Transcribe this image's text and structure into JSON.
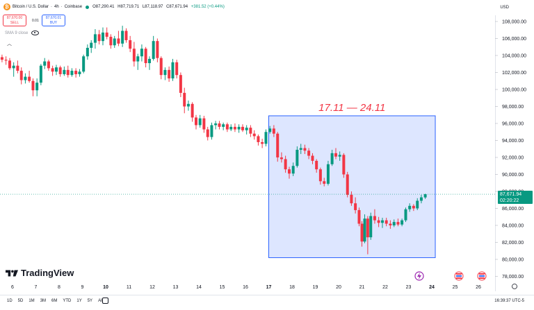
{
  "header": {
    "symbol_name": "Bitcoin / U.S. Dollar",
    "interval": "4h",
    "exchange": "Coinbase",
    "ohlc": [
      "O87,290.41",
      "H87,719.71",
      "L87,118.97",
      "C87,671.94"
    ],
    "change": "+381.52 (+0.44%)",
    "currency": "USD",
    "sell_price": "87,670.00",
    "sell_label": "SELL",
    "spread": "0.01",
    "buy_price": "87,670.01",
    "buy_label": "BUY",
    "indicator": "SMA 9 close"
  },
  "logo_text": "TradingView",
  "bottom": {
    "ranges": [
      "1D",
      "5D",
      "1M",
      "3M",
      "6M",
      "YTD",
      "1Y",
      "5Y",
      "All"
    ],
    "clock": "16:39:37 UTC-5"
  },
  "colors": {
    "up": "#089981",
    "down": "#f23645",
    "highlight": "#2962ff",
    "annotation": "#f23645"
  },
  "chart_data": {
    "type": "candlestick",
    "x_ticks": [
      "6",
      "7",
      "8",
      "9",
      "10",
      "11",
      "12",
      "13",
      "14",
      "15",
      "16",
      "17",
      "18",
      "19",
      "20",
      "21",
      "22",
      "23",
      "24",
      "25",
      "26"
    ],
    "bold_ticks": [
      "10",
      "17",
      "24"
    ],
    "y_ticks": [
      "78,000.00",
      "80,000.00",
      "82,000.00",
      "84,000.00",
      "86,000.00",
      "88,000.00",
      "90,000.00",
      "92,000.00",
      "94,000.00",
      "96,000.00",
      "98,000.00",
      "100,000.00",
      "102,000.00",
      "104,000.00",
      "106,000.00",
      "108,000.00"
    ],
    "ylim": [
      77000,
      109800
    ],
    "last_price": 87671.94,
    "last_price_label": "87,671.94",
    "countdown": "02:20:22",
    "highlight_range": {
      "x_from": 17.0,
      "x_to": 24.15,
      "y_from": 80200,
      "y_to": 96900
    },
    "annotation": "17.11 — 24.11",
    "candles": [
      {
        "x": 5.55,
        "o": 103800,
        "h": 104100,
        "l": 103200,
        "c": 103500
      },
      {
        "x": 5.72,
        "o": 103500,
        "h": 103900,
        "l": 102900,
        "c": 103400
      },
      {
        "x": 5.88,
        "o": 103400,
        "h": 103700,
        "l": 102300,
        "c": 102500
      },
      {
        "x": 6.05,
        "o": 102500,
        "h": 103200,
        "l": 101500,
        "c": 102800
      },
      {
        "x": 6.22,
        "o": 102800,
        "h": 103400,
        "l": 101900,
        "c": 102200
      },
      {
        "x": 6.38,
        "o": 102200,
        "h": 102600,
        "l": 100600,
        "c": 101100
      },
      {
        "x": 6.55,
        "o": 101100,
        "h": 101900,
        "l": 100700,
        "c": 101500
      },
      {
        "x": 6.72,
        "o": 101500,
        "h": 102200,
        "l": 100800,
        "c": 101000
      },
      {
        "x": 6.88,
        "o": 101000,
        "h": 101300,
        "l": 99200,
        "c": 99900
      },
      {
        "x": 7.05,
        "o": 99900,
        "h": 101300,
        "l": 99200,
        "c": 100800
      },
      {
        "x": 7.22,
        "o": 100800,
        "h": 103000,
        "l": 100500,
        "c": 102800
      },
      {
        "x": 7.38,
        "o": 102800,
        "h": 103700,
        "l": 102400,
        "c": 103300
      },
      {
        "x": 7.55,
        "o": 103300,
        "h": 103500,
        "l": 102200,
        "c": 102500
      },
      {
        "x": 7.72,
        "o": 102500,
        "h": 102800,
        "l": 101600,
        "c": 102100
      },
      {
        "x": 7.88,
        "o": 102100,
        "h": 102900,
        "l": 101700,
        "c": 102600
      },
      {
        "x": 8.05,
        "o": 102600,
        "h": 102800,
        "l": 101500,
        "c": 101800
      },
      {
        "x": 8.22,
        "o": 101800,
        "h": 102700,
        "l": 101600,
        "c": 102300
      },
      {
        "x": 8.38,
        "o": 102300,
        "h": 102800,
        "l": 101400,
        "c": 101700
      },
      {
        "x": 8.55,
        "o": 101700,
        "h": 102500,
        "l": 101500,
        "c": 102200
      },
      {
        "x": 8.72,
        "o": 102200,
        "h": 102500,
        "l": 101400,
        "c": 101800
      },
      {
        "x": 8.88,
        "o": 101800,
        "h": 102400,
        "l": 101500,
        "c": 102100
      },
      {
        "x": 9.05,
        "o": 102100,
        "h": 104100,
        "l": 101900,
        "c": 103900
      },
      {
        "x": 9.22,
        "o": 103900,
        "h": 105300,
        "l": 103500,
        "c": 104900
      },
      {
        "x": 9.38,
        "o": 104900,
        "h": 105800,
        "l": 104300,
        "c": 105500
      },
      {
        "x": 9.55,
        "o": 105500,
        "h": 107100,
        "l": 104800,
        "c": 106500
      },
      {
        "x": 9.72,
        "o": 106500,
        "h": 107000,
        "l": 105300,
        "c": 105700
      },
      {
        "x": 9.88,
        "o": 105700,
        "h": 107300,
        "l": 105200,
        "c": 106700
      },
      {
        "x": 10.05,
        "o": 106700,
        "h": 107300,
        "l": 105900,
        "c": 106200
      },
      {
        "x": 10.22,
        "o": 106200,
        "h": 106500,
        "l": 104800,
        "c": 105200
      },
      {
        "x": 10.38,
        "o": 105200,
        "h": 106300,
        "l": 104900,
        "c": 106000
      },
      {
        "x": 10.55,
        "o": 106000,
        "h": 106900,
        "l": 105100,
        "c": 105400
      },
      {
        "x": 10.72,
        "o": 105400,
        "h": 107500,
        "l": 105000,
        "c": 106900
      },
      {
        "x": 10.88,
        "o": 106900,
        "h": 107200,
        "l": 105500,
        "c": 105800
      },
      {
        "x": 11.05,
        "o": 105800,
        "h": 106300,
        "l": 104400,
        "c": 104800
      },
      {
        "x": 11.22,
        "o": 104800,
        "h": 105600,
        "l": 102700,
        "c": 103300
      },
      {
        "x": 11.38,
        "o": 103300,
        "h": 104200,
        "l": 102300,
        "c": 103900
      },
      {
        "x": 11.55,
        "o": 103900,
        "h": 105300,
        "l": 103300,
        "c": 104800
      },
      {
        "x": 11.72,
        "o": 104800,
        "h": 105000,
        "l": 102600,
        "c": 103100
      },
      {
        "x": 11.88,
        "o": 103100,
        "h": 103900,
        "l": 102300,
        "c": 103600
      },
      {
        "x": 12.05,
        "o": 103600,
        "h": 106300,
        "l": 103400,
        "c": 105700
      },
      {
        "x": 12.22,
        "o": 105700,
        "h": 106000,
        "l": 103200,
        "c": 103700
      },
      {
        "x": 12.38,
        "o": 103700,
        "h": 103900,
        "l": 101200,
        "c": 101700
      },
      {
        "x": 12.55,
        "o": 101700,
        "h": 102600,
        "l": 101100,
        "c": 102300
      },
      {
        "x": 12.72,
        "o": 102300,
        "h": 102700,
        "l": 100900,
        "c": 101300
      },
      {
        "x": 12.88,
        "o": 101300,
        "h": 103600,
        "l": 101000,
        "c": 103200
      },
      {
        "x": 13.05,
        "o": 103200,
        "h": 103500,
        "l": 101300,
        "c": 101700
      },
      {
        "x": 13.22,
        "o": 101700,
        "h": 102000,
        "l": 99100,
        "c": 99600
      },
      {
        "x": 13.38,
        "o": 99600,
        "h": 100200,
        "l": 97200,
        "c": 98000
      },
      {
        "x": 13.55,
        "o": 98000,
        "h": 98700,
        "l": 97500,
        "c": 98300
      },
      {
        "x": 13.72,
        "o": 98300,
        "h": 98500,
        "l": 96200,
        "c": 96700
      },
      {
        "x": 13.88,
        "o": 96700,
        "h": 97000,
        "l": 95300,
        "c": 95800
      },
      {
        "x": 14.05,
        "o": 95800,
        "h": 97000,
        "l": 95500,
        "c": 96600
      },
      {
        "x": 14.22,
        "o": 96600,
        "h": 96900,
        "l": 94900,
        "c": 95300
      },
      {
        "x": 14.38,
        "o": 95300,
        "h": 95600,
        "l": 94000,
        "c": 94400
      },
      {
        "x": 14.55,
        "o": 94400,
        "h": 96100,
        "l": 94100,
        "c": 95800
      },
      {
        "x": 14.72,
        "o": 95800,
        "h": 96300,
        "l": 95300,
        "c": 96000
      },
      {
        "x": 14.88,
        "o": 96000,
        "h": 96300,
        "l": 95300,
        "c": 95600
      },
      {
        "x": 15.05,
        "o": 95600,
        "h": 96100,
        "l": 95200,
        "c": 95900
      },
      {
        "x": 15.22,
        "o": 95900,
        "h": 96100,
        "l": 95000,
        "c": 95300
      },
      {
        "x": 15.38,
        "o": 95300,
        "h": 95900,
        "l": 95100,
        "c": 95600
      },
      {
        "x": 15.55,
        "o": 95600,
        "h": 96000,
        "l": 95000,
        "c": 95300
      },
      {
        "x": 15.72,
        "o": 95300,
        "h": 95900,
        "l": 94900,
        "c": 95600
      },
      {
        "x": 15.88,
        "o": 95600,
        "h": 95900,
        "l": 95000,
        "c": 95200
      },
      {
        "x": 16.05,
        "o": 95200,
        "h": 95800,
        "l": 94700,
        "c": 95500
      },
      {
        "x": 16.22,
        "o": 95500,
        "h": 95800,
        "l": 94400,
        "c": 94800
      },
      {
        "x": 16.38,
        "o": 94800,
        "h": 95200,
        "l": 94100,
        "c": 94500
      },
      {
        "x": 16.55,
        "o": 94500,
        "h": 94700,
        "l": 93400,
        "c": 93800
      },
      {
        "x": 16.72,
        "o": 93800,
        "h": 94200,
        "l": 93100,
        "c": 93600
      },
      {
        "x": 16.88,
        "o": 93600,
        "h": 95300,
        "l": 93300,
        "c": 95000
      },
      {
        "x": 17.05,
        "o": 95000,
        "h": 95700,
        "l": 94800,
        "c": 95400
      },
      {
        "x": 17.22,
        "o": 95400,
        "h": 95800,
        "l": 94400,
        "c": 94800
      },
      {
        "x": 17.38,
        "o": 94800,
        "h": 95000,
        "l": 91500,
        "c": 92000
      },
      {
        "x": 17.55,
        "o": 92000,
        "h": 92600,
        "l": 91400,
        "c": 91800
      },
      {
        "x": 17.72,
        "o": 91800,
        "h": 92200,
        "l": 90200,
        "c": 90600
      },
      {
        "x": 17.88,
        "o": 90600,
        "h": 90900,
        "l": 89500,
        "c": 90100
      },
      {
        "x": 18.05,
        "o": 90100,
        "h": 91400,
        "l": 89800,
        "c": 91000
      },
      {
        "x": 18.22,
        "o": 91000,
        "h": 93300,
        "l": 90800,
        "c": 92900
      },
      {
        "x": 18.38,
        "o": 92900,
        "h": 93600,
        "l": 92400,
        "c": 93100
      },
      {
        "x": 18.55,
        "o": 93100,
        "h": 93500,
        "l": 92400,
        "c": 92800
      },
      {
        "x": 18.72,
        "o": 92800,
        "h": 93100,
        "l": 91800,
        "c": 92200
      },
      {
        "x": 18.88,
        "o": 92200,
        "h": 92500,
        "l": 91200,
        "c": 91600
      },
      {
        "x": 19.05,
        "o": 91600,
        "h": 91800,
        "l": 90200,
        "c": 90600
      },
      {
        "x": 19.22,
        "o": 90600,
        "h": 90800,
        "l": 88800,
        "c": 89200
      },
      {
        "x": 19.38,
        "o": 89200,
        "h": 89600,
        "l": 88600,
        "c": 88900
      },
      {
        "x": 19.55,
        "o": 88900,
        "h": 91600,
        "l": 88700,
        "c": 91200
      },
      {
        "x": 19.72,
        "o": 91200,
        "h": 92900,
        "l": 91000,
        "c": 92500
      },
      {
        "x": 19.88,
        "o": 92500,
        "h": 93100,
        "l": 91800,
        "c": 92100
      },
      {
        "x": 20.05,
        "o": 92100,
        "h": 92700,
        "l": 91600,
        "c": 92300
      },
      {
        "x": 20.22,
        "o": 92300,
        "h": 92500,
        "l": 89600,
        "c": 90000
      },
      {
        "x": 20.38,
        "o": 90000,
        "h": 90300,
        "l": 87300,
        "c": 87600
      },
      {
        "x": 20.55,
        "o": 87600,
        "h": 88000,
        "l": 86300,
        "c": 86600
      },
      {
        "x": 20.72,
        "o": 86600,
        "h": 87300,
        "l": 85400,
        "c": 85800
      },
      {
        "x": 20.88,
        "o": 85800,
        "h": 86100,
        "l": 83900,
        "c": 84200
      },
      {
        "x": 21.0,
        "o": 84200,
        "h": 84500,
        "l": 81500,
        "c": 82100
      },
      {
        "x": 21.12,
        "o": 82100,
        "h": 85300,
        "l": 81900,
        "c": 84800
      },
      {
        "x": 21.25,
        "o": 84800,
        "h": 85100,
        "l": 80600,
        "c": 82600
      },
      {
        "x": 21.38,
        "o": 82600,
        "h": 85500,
        "l": 82300,
        "c": 85100
      },
      {
        "x": 21.55,
        "o": 85100,
        "h": 85900,
        "l": 84200,
        "c": 84600
      },
      {
        "x": 21.72,
        "o": 84600,
        "h": 85000,
        "l": 83800,
        "c": 84300
      },
      {
        "x": 21.88,
        "o": 84300,
        "h": 84900,
        "l": 83700,
        "c": 84600
      },
      {
        "x": 22.05,
        "o": 84600,
        "h": 84900,
        "l": 83900,
        "c": 84200
      },
      {
        "x": 22.22,
        "o": 84200,
        "h": 84600,
        "l": 83600,
        "c": 84000
      },
      {
        "x": 22.38,
        "o": 84000,
        "h": 84700,
        "l": 83800,
        "c": 84400
      },
      {
        "x": 22.55,
        "o": 84400,
        "h": 84800,
        "l": 83900,
        "c": 84100
      },
      {
        "x": 22.72,
        "o": 84100,
        "h": 84800,
        "l": 83900,
        "c": 84600
      },
      {
        "x": 22.88,
        "o": 84600,
        "h": 86100,
        "l": 84400,
        "c": 85900
      },
      {
        "x": 23.05,
        "o": 85900,
        "h": 86600,
        "l": 85600,
        "c": 86300
      },
      {
        "x": 23.22,
        "o": 86300,
        "h": 86500,
        "l": 85700,
        "c": 86000
      },
      {
        "x": 23.38,
        "o": 86000,
        "h": 87200,
        "l": 85800,
        "c": 86900
      },
      {
        "x": 23.55,
        "o": 86900,
        "h": 87600,
        "l": 86600,
        "c": 87300
      },
      {
        "x": 23.72,
        "o": 87290.41,
        "h": 87719.71,
        "l": 87118.97,
        "c": 87671.94
      }
    ]
  }
}
